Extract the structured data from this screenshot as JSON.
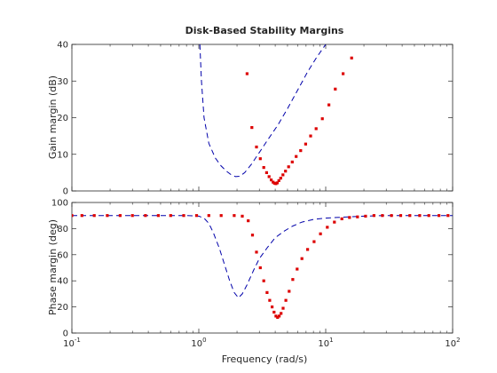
{
  "chart_data": [
    {
      "type": "line",
      "title": "Disk-Based Stability Margins",
      "ylabel": "Gain margin (dB)",
      "xlabel": "",
      "xscale": "log",
      "xlim": [
        0.1,
        100
      ],
      "ylim": [
        0,
        40
      ],
      "yticks": [
        "0",
        "10",
        "20",
        "30",
        "40"
      ],
      "grid": false,
      "series": [
        {
          "style": "dashed",
          "color": "#0000aa",
          "x": [
            1.02,
            1.05,
            1.1,
            1.2,
            1.35,
            1.5,
            1.65,
            1.8,
            1.95,
            2.1,
            2.3,
            2.6,
            3.0,
            3.5,
            4.2,
            5.0,
            6.0,
            7.2,
            8.5,
            10.0
          ],
          "y": [
            40,
            30,
            20,
            13,
            9,
            6.8,
            5.4,
            4.4,
            3.9,
            4.0,
            5.0,
            7.3,
            10.5,
            14.0,
            18.0,
            22.5,
            27.5,
            32.5,
            36.5,
            40.0
          ]
        },
        {
          "style": "dotted",
          "color": "#dd0000",
          "x": [
            2.4,
            2.62,
            2.85,
            3.05,
            3.25,
            3.42,
            3.58,
            3.72,
            3.85,
            3.95,
            4.05,
            4.15,
            4.27,
            4.42,
            4.6,
            4.82,
            5.1,
            5.45,
            5.85,
            6.35,
            6.95,
            7.6,
            8.4,
            9.4,
            10.6,
            11.9,
            13.7,
            16.0
          ],
          "y": [
            32,
            17.3,
            12.0,
            8.8,
            6.4,
            5.0,
            3.9,
            3.0,
            2.4,
            2.1,
            2.0,
            2.2,
            2.8,
            3.5,
            4.4,
            5.4,
            6.6,
            7.9,
            9.4,
            11.0,
            12.8,
            15.0,
            17.0,
            19.7,
            23.5,
            27.8,
            32.0,
            36.3
          ]
        }
      ]
    },
    {
      "type": "line",
      "title": "",
      "ylabel": "Phase margin (deg)",
      "xlabel": "Frequency (rad/s)",
      "xscale": "log",
      "xlim": [
        0.1,
        100
      ],
      "ylim": [
        0,
        100
      ],
      "yticks": [
        "0",
        "20",
        "40",
        "60",
        "80",
        "100"
      ],
      "grid": false,
      "series": [
        {
          "style": "dashed",
          "color": "#0000aa",
          "x": [
            0.1,
            0.2,
            0.5,
            0.8,
            1.0,
            1.1,
            1.2,
            1.3,
            1.45,
            1.6,
            1.75,
            1.9,
            2.05,
            2.2,
            2.4,
            2.7,
            3.0,
            3.5,
            4.0,
            4.7,
            5.5,
            6.5,
            8.0,
            10.0,
            15.0,
            20.0,
            30.0,
            50.0,
            100.0
          ],
          "y": [
            90,
            90,
            90,
            90,
            89.5,
            88,
            84,
            77,
            65,
            52,
            40,
            31,
            27,
            30,
            37,
            48,
            57,
            66,
            73,
            78,
            82,
            85,
            87,
            88,
            89,
            89.5,
            90,
            90,
            90
          ]
        },
        {
          "style": "dotted",
          "color": "#dd0000",
          "x": [
            0.1,
            0.12,
            0.15,
            0.19,
            0.24,
            0.3,
            0.38,
            0.48,
            0.6,
            0.76,
            0.96,
            1.2,
            1.5,
            1.9,
            2.2,
            2.45,
            2.65,
            2.85,
            3.05,
            3.25,
            3.45,
            3.62,
            3.78,
            3.92,
            4.05,
            4.18,
            4.3,
            4.45,
            4.62,
            4.85,
            5.15,
            5.5,
            5.95,
            6.5,
            7.2,
            8.1,
            9.1,
            10.3,
            11.7,
            13.4,
            15.4,
            17.8,
            20.6,
            24,
            28,
            33,
            39,
            46,
            55,
            65,
            78,
            92
          ],
          "y": [
            90,
            90,
            90,
            90,
            90,
            90,
            90,
            90,
            90,
            90,
            90,
            90,
            90,
            90,
            89.5,
            86,
            75,
            62,
            50,
            40,
            31,
            25,
            20,
            16,
            13,
            12,
            13,
            15,
            19,
            25,
            32,
            41,
            49,
            57,
            64,
            70,
            76,
            81,
            85,
            87.5,
            88.5,
            89,
            89.5,
            90,
            90,
            90,
            90,
            90,
            90,
            90,
            90,
            90
          ]
        }
      ]
    }
  ],
  "xticks": [
    {
      "value": 0.1,
      "base": "10",
      "exp": "-1"
    },
    {
      "value": 1,
      "base": "10",
      "exp": "0"
    },
    {
      "value": 10,
      "base": "10",
      "exp": "1"
    },
    {
      "value": 100,
      "base": "10",
      "exp": "2"
    }
  ]
}
